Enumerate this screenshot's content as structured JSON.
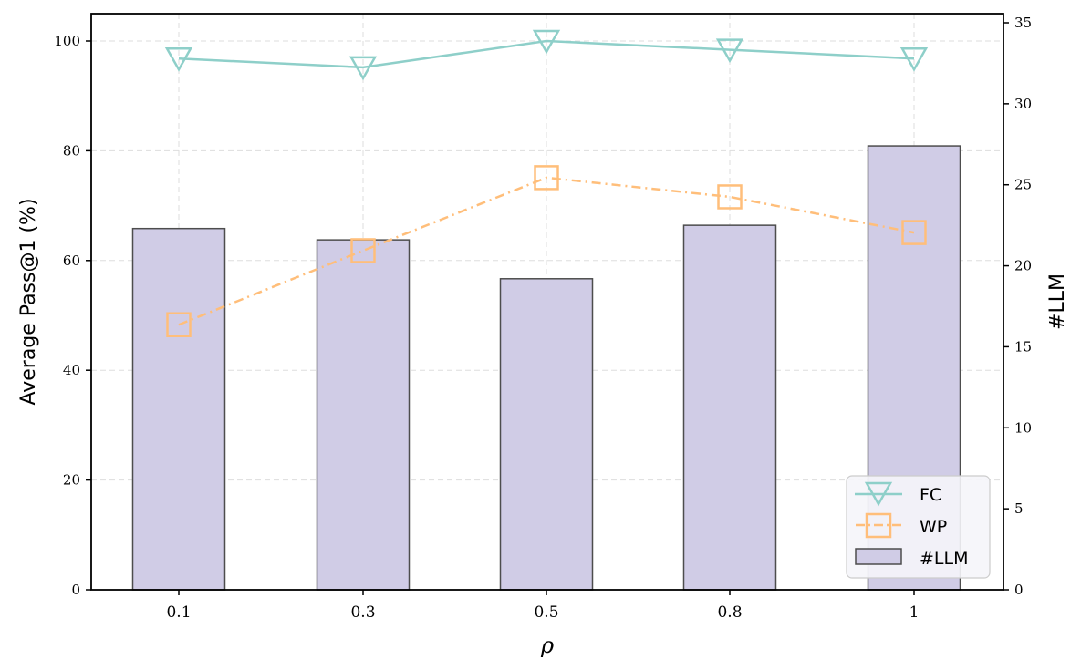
{
  "chart_data": {
    "type": "bar+line",
    "title": "",
    "xlabel": "ρ",
    "ylabel": "Average Pass@1 (%)",
    "ylabel_right": "#LLM",
    "categories": [
      "0.1",
      "0.3",
      "0.5",
      "0.8",
      "1"
    ],
    "ylim": [
      0,
      105
    ],
    "ylim_right": [
      0,
      35.5
    ],
    "yticks": [
      0,
      20,
      40,
      60,
      80,
      100
    ],
    "yticks_right": [
      0,
      5,
      10,
      15,
      20,
      25,
      30,
      35
    ],
    "grid": true,
    "legend_position": "lower right",
    "series": [
      {
        "name": "FC",
        "type": "line",
        "axis": "left",
        "marker": "triangle-down",
        "linestyle": "solid",
        "color": "#8ecfc9",
        "values": [
          96.8,
          95.2,
          100.0,
          98.4,
          96.8
        ]
      },
      {
        "name": "WP",
        "type": "line",
        "axis": "left",
        "marker": "square",
        "linestyle": "dashdot",
        "color": "#ffbe7a",
        "values": [
          48.3,
          61.8,
          75.1,
          71.6,
          65.1
        ]
      },
      {
        "name": "#LLM",
        "type": "bar",
        "axis": "right",
        "color": "#d0cce6",
        "edgecolor": "#4d4d4d",
        "values": [
          22.3,
          21.6,
          19.2,
          22.5,
          27.4
        ]
      }
    ]
  },
  "legend": {
    "items": [
      {
        "label": "FC"
      },
      {
        "label": "WP"
      },
      {
        "label": "#LLM"
      }
    ]
  }
}
